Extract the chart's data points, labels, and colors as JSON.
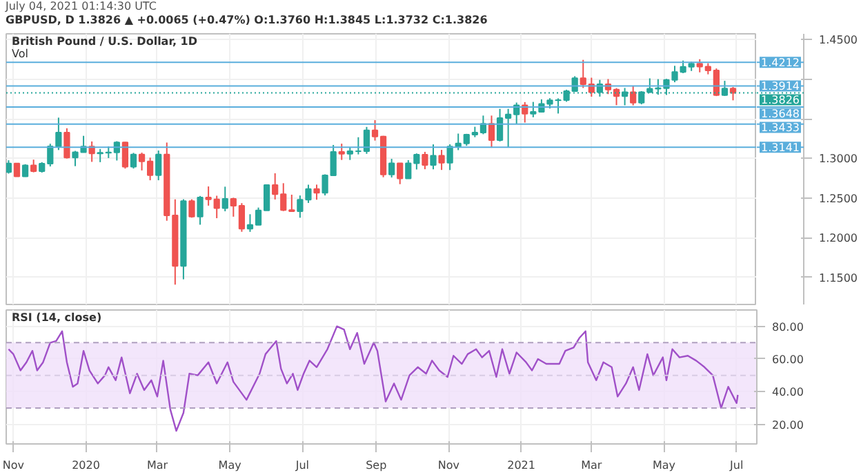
{
  "chart_data": [
    {
      "type": "candlestick",
      "subtitle": "July 04, 2021 01:14:30 UTC",
      "title": "GBPUSD, D  1.3826 ▲ +0.0065 (+0.47%)  O:1.3760  H:1.3845  L:1.3732  C:1.3826",
      "annotations": [
        "British Pound / U.S. Dollar, 1D",
        "Vol"
      ],
      "x": [
        "2019-10-28",
        "2019-11-04",
        "2019-11-11",
        "2019-11-18",
        "2019-11-25",
        "2019-12-02",
        "2019-12-09",
        "2019-12-16",
        "2019-12-23",
        "2019-12-30",
        "2020-01-06",
        "2020-01-13",
        "2020-01-20",
        "2020-01-27",
        "2020-02-03",
        "2020-02-10",
        "2020-02-17",
        "2020-02-24",
        "2020-03-02",
        "2020-03-09",
        "2020-03-16",
        "2020-03-23",
        "2020-03-30",
        "2020-04-06",
        "2020-04-13",
        "2020-04-20",
        "2020-04-27",
        "2020-05-04",
        "2020-05-11",
        "2020-05-18",
        "2020-05-25",
        "2020-06-01",
        "2020-06-08",
        "2020-06-15",
        "2020-06-22",
        "2020-06-29",
        "2020-07-06",
        "2020-07-13",
        "2020-07-20",
        "2020-07-27",
        "2020-08-03",
        "2020-08-10",
        "2020-08-17",
        "2020-08-24",
        "2020-08-31",
        "2020-09-07",
        "2020-09-14",
        "2020-09-21",
        "2020-09-28",
        "2020-10-05",
        "2020-10-12",
        "2020-10-19",
        "2020-10-26",
        "2020-11-02",
        "2020-11-09",
        "2020-11-16",
        "2020-11-23",
        "2020-11-30",
        "2020-12-07",
        "2020-12-14",
        "2020-12-21",
        "2020-12-28",
        "2021-01-04",
        "2021-01-11",
        "2021-01-18",
        "2021-01-25",
        "2021-02-01",
        "2021-02-08",
        "2021-02-15",
        "2021-02-22",
        "2021-03-01",
        "2021-03-08",
        "2021-03-15",
        "2021-03-22",
        "2021-03-29",
        "2021-04-05",
        "2021-04-12",
        "2021-04-19",
        "2021-04-26",
        "2021-05-03",
        "2021-05-10",
        "2021-05-17",
        "2021-05-24",
        "2021-05-31",
        "2021-06-07",
        "2021-06-14",
        "2021-06-21",
        "2021-06-28"
      ],
      "ohlc": [
        [
          1.2828,
          1.2977,
          1.2809,
          1.2937
        ],
        [
          1.2937,
          1.2939,
          1.2769,
          1.2773
        ],
        [
          1.2773,
          1.2927,
          1.2768,
          1.2913
        ],
        [
          1.2913,
          1.2985,
          1.2825,
          1.2838
        ],
        [
          1.2838,
          1.2953,
          1.2822,
          1.2934
        ],
        [
          1.2934,
          1.3185,
          1.2899,
          1.3153
        ],
        [
          1.3153,
          1.3514,
          1.3106,
          1.3325
        ],
        [
          1.3325,
          1.338,
          1.2999,
          1.301
        ],
        [
          1.301,
          1.3095,
          1.2903,
          1.3079
        ],
        [
          1.3079,
          1.3285,
          1.3079,
          1.315
        ],
        [
          1.315,
          1.3214,
          1.2957,
          1.3062
        ],
        [
          1.3062,
          1.3119,
          1.2953,
          1.3071
        ],
        [
          1.3071,
          1.3152,
          1.3005,
          1.3077
        ],
        [
          1.3077,
          1.3217,
          1.2974,
          1.3203
        ],
        [
          1.3203,
          1.3208,
          1.2872,
          1.2896
        ],
        [
          1.2896,
          1.307,
          1.2873,
          1.3049
        ],
        [
          1.3049,
          1.3073,
          1.2849,
          1.2962
        ],
        [
          1.2962,
          1.301,
          1.2725,
          1.2789
        ],
        [
          1.2789,
          1.31,
          1.2725,
          1.3049
        ],
        [
          1.3049,
          1.32,
          1.2215,
          1.2282
        ],
        [
          1.2282,
          1.2485,
          1.141,
          1.1644
        ],
        [
          1.1644,
          1.2486,
          1.1477,
          1.2463
        ],
        [
          1.2463,
          1.2485,
          1.2254,
          1.2266
        ],
        [
          1.2266,
          1.2527,
          1.2165,
          1.2509
        ],
        [
          1.2509,
          1.2647,
          1.2405,
          1.2484
        ],
        [
          1.2484,
          1.253,
          1.2247,
          1.2373
        ],
        [
          1.2373,
          1.2644,
          1.2334,
          1.249
        ],
        [
          1.249,
          1.2505,
          1.2266,
          1.2405
        ],
        [
          1.2405,
          1.2437,
          1.2076,
          1.2115
        ],
        [
          1.2115,
          1.2297,
          1.2075,
          1.2162
        ],
        [
          1.2162,
          1.2381,
          1.216,
          1.2346
        ],
        [
          1.2346,
          1.267,
          1.2346,
          1.2665
        ],
        [
          1.2665,
          1.2813,
          1.2483,
          1.255
        ],
        [
          1.255,
          1.2688,
          1.2337,
          1.235
        ],
        [
          1.235,
          1.2543,
          1.233,
          1.2334
        ],
        [
          1.2334,
          1.2533,
          1.2253,
          1.248
        ],
        [
          1.248,
          1.2669,
          1.2439,
          1.2615
        ],
        [
          1.2615,
          1.267,
          1.248,
          1.2567
        ],
        [
          1.2567,
          1.28,
          1.2534,
          1.2787
        ],
        [
          1.2787,
          1.317,
          1.278,
          1.3083
        ],
        [
          1.3083,
          1.3186,
          1.2981,
          1.3058
        ],
        [
          1.3058,
          1.3143,
          1.2981,
          1.3091
        ],
        [
          1.3091,
          1.3267,
          1.3051,
          1.3092
        ],
        [
          1.3092,
          1.3397,
          1.3058,
          1.3355
        ],
        [
          1.3355,
          1.3482,
          1.3225,
          1.3277
        ],
        [
          1.3277,
          1.3285,
          1.2763,
          1.2797
        ],
        [
          1.2797,
          1.2995,
          1.276,
          1.2938
        ],
        [
          1.2938,
          1.2942,
          1.2676,
          1.2747
        ],
        [
          1.2747,
          1.2979,
          1.2745,
          1.294
        ],
        [
          1.294,
          1.3063,
          1.2861,
          1.3047
        ],
        [
          1.3047,
          1.3083,
          1.2864,
          1.2918
        ],
        [
          1.2918,
          1.3177,
          1.2863,
          1.3035
        ],
        [
          1.3035,
          1.3108,
          1.2855,
          1.2945
        ],
        [
          1.2945,
          1.3178,
          1.2854,
          1.315
        ],
        [
          1.315,
          1.3313,
          1.3105,
          1.319
        ],
        [
          1.319,
          1.331,
          1.3159,
          1.33
        ],
        [
          1.33,
          1.3399,
          1.3268,
          1.3326
        ],
        [
          1.3326,
          1.354,
          1.3305,
          1.3437
        ],
        [
          1.3437,
          1.354,
          1.3134,
          1.3231
        ],
        [
          1.3231,
          1.3625,
          1.3214,
          1.3509
        ],
        [
          1.3509,
          1.3625,
          1.3135,
          1.3554
        ],
        [
          1.3554,
          1.3704,
          1.343,
          1.367
        ],
        [
          1.367,
          1.371,
          1.3452,
          1.3563
        ],
        [
          1.3563,
          1.3712,
          1.3519,
          1.3587
        ],
        [
          1.3587,
          1.3745,
          1.3578,
          1.3686
        ],
        [
          1.3686,
          1.3759,
          1.363,
          1.3732
        ],
        [
          1.3732,
          1.3757,
          1.3566,
          1.3734
        ],
        [
          1.3734,
          1.3866,
          1.3714,
          1.3848
        ],
        [
          1.3848,
          1.4036,
          1.3846,
          1.4011
        ],
        [
          1.4011,
          1.4242,
          1.3888,
          1.3935
        ],
        [
          1.3935,
          1.4017,
          1.3778,
          1.3834
        ],
        [
          1.3834,
          1.399,
          1.3779,
          1.3935
        ],
        [
          1.3935,
          1.4,
          1.3811,
          1.3868
        ],
        [
          1.3868,
          1.3886,
          1.3671,
          1.3784
        ],
        [
          1.3784,
          1.3888,
          1.3669,
          1.3835
        ],
        [
          1.3835,
          1.3918,
          1.3669,
          1.3702
        ],
        [
          1.3702,
          1.3848,
          1.3682,
          1.3836
        ],
        [
          1.3836,
          1.4009,
          1.3827,
          1.3879
        ],
        [
          1.3879,
          1.3999,
          1.3803,
          1.3884
        ],
        [
          1.3884,
          1.4003,
          1.38,
          1.399
        ],
        [
          1.399,
          1.4167,
          1.396,
          1.409
        ],
        [
          1.409,
          1.4233,
          1.4074,
          1.4155
        ],
        [
          1.4155,
          1.4219,
          1.4102,
          1.4193
        ],
        [
          1.4193,
          1.425,
          1.4085,
          1.4157
        ],
        [
          1.4157,
          1.42,
          1.406,
          1.411
        ],
        [
          1.411,
          1.4134,
          1.3786,
          1.3799
        ],
        [
          1.3799,
          1.3978,
          1.3787,
          1.388
        ],
        [
          1.388,
          1.39,
          1.3732,
          1.3826
        ]
      ],
      "xlim": [
        "2019-10-26",
        "2021-07-18"
      ],
      "xticks": [
        {
          "value": "2019-11-01",
          "label": null
        },
        {
          "value": "2020-01-01",
          "label": null
        },
        {
          "value": "2020-03-01",
          "label": null
        },
        {
          "value": "2020-05-01",
          "label": null
        },
        {
          "value": "2020-07-01",
          "label": null
        },
        {
          "value": "2020-09-01",
          "label": null
        },
        {
          "value": "2020-11-01",
          "label": null
        },
        {
          "value": "2021-01-01",
          "label": null
        },
        {
          "value": "2021-03-01",
          "label": null
        },
        {
          "value": "2021-05-01",
          "label": null
        },
        {
          "value": "2021-07-01",
          "label": null
        }
      ],
      "ylim": [
        1.116,
        1.457
      ],
      "yticks": [
        {
          "value": 1.15,
          "label": "1.1500"
        },
        {
          "value": 1.2,
          "label": "1.2000"
        },
        {
          "value": 1.25,
          "label": "1.2500"
        },
        {
          "value": 1.3,
          "label": "1.3000"
        },
        {
          "value": 1.35,
          "label": null
        },
        {
          "value": 1.4,
          "label": null
        },
        {
          "value": 1.45,
          "label": "1.4500"
        }
      ],
      "tick_labels": "y",
      "grid": true,
      "ref_lines": [
        {
          "axis": "y",
          "value": 1.4212,
          "label": "1.4212",
          "color": "#5aaedc",
          "line_style": "solid"
        },
        {
          "axis": "y",
          "value": 1.3914,
          "label": "1.3914",
          "color": "#5aaedc",
          "line_style": "solid"
        },
        {
          "axis": "y",
          "value": 1.3826,
          "label": "1.3826",
          "color": "#26a69a",
          "line_style": "dotted"
        },
        {
          "axis": "y",
          "value": 1.3648,
          "label": "1.3648",
          "color": "#5aaedc",
          "line_style": "solid"
        },
        {
          "axis": "y",
          "value": 1.3433,
          "label": "1.3433",
          "color": "#5aaedc",
          "line_style": "solid"
        },
        {
          "axis": "y",
          "value": 1.3141,
          "label": "1.3141",
          "color": "#5aaedc",
          "line_style": "solid"
        }
      ]
    },
    {
      "type": "line",
      "annotations": [
        "RSI (14, close)"
      ],
      "marker": "none",
      "line_style": "solid",
      "x": [
        "2019-10-28",
        "2019-11-01",
        "2019-11-07",
        "2019-11-12",
        "2019-11-17",
        "2019-11-21",
        "2019-11-26",
        "2019-12-02",
        "2019-12-07",
        "2019-12-12",
        "2019-12-16",
        "2019-12-21",
        "2019-12-25",
        "2019-12-30",
        "2020-01-04",
        "2020-01-11",
        "2020-01-17",
        "2020-01-20",
        "2020-01-26",
        "2020-01-31",
        "2020-02-07",
        "2020-02-13",
        "2020-02-19",
        "2020-02-25",
        "2020-03-01",
        "2020-03-06",
        "2020-03-12",
        "2020-03-17",
        "2020-03-23",
        "2020-03-28",
        "2020-04-04",
        "2020-04-13",
        "2020-04-20",
        "2020-04-29",
        "2020-05-04",
        "2020-05-15",
        "2020-05-26",
        "2020-05-31",
        "2020-06-09",
        "2020-06-13",
        "2020-06-18",
        "2020-06-23",
        "2020-06-27",
        "2020-07-02",
        "2020-07-07",
        "2020-07-13",
        "2020-07-22",
        "2020-07-30",
        "2020-08-05",
        "2020-08-10",
        "2020-08-16",
        "2020-08-22",
        "2020-08-30",
        "2020-09-02",
        "2020-09-09",
        "2020-09-16",
        "2020-09-22",
        "2020-09-29",
        "2020-10-06",
        "2020-10-13",
        "2020-10-18",
        "2020-10-24",
        "2020-10-31",
        "2020-11-05",
        "2020-11-12",
        "2020-11-17",
        "2020-11-24",
        "2020-11-29",
        "2020-12-05",
        "2020-12-11",
        "2020-12-16",
        "2020-12-22",
        "2020-12-28",
        "2021-01-05",
        "2021-01-10",
        "2021-01-15",
        "2021-01-22",
        "2021-02-02",
        "2021-02-07",
        "2021-02-14",
        "2021-02-19",
        "2021-02-24",
        "2021-02-26",
        "2021-03-05",
        "2021-03-11",
        "2021-03-18",
        "2021-03-23",
        "2021-03-30",
        "2021-04-05",
        "2021-04-10",
        "2021-04-17",
        "2021-04-22",
        "2021-04-30",
        "2021-05-03",
        "2021-05-08",
        "2021-05-14",
        "2021-05-21",
        "2021-05-28",
        "2021-06-04",
        "2021-06-11",
        "2021-06-18",
        "2021-06-24",
        "2021-07-01",
        "2021-07-02"
      ],
      "series": [
        {
          "color": "#a050c8",
          "values": [
            66,
            63,
            53,
            58,
            65,
            53,
            58,
            70,
            71,
            77,
            58,
            43,
            45,
            65,
            53,
            45,
            50,
            55,
            47,
            61,
            39,
            51,
            41,
            47,
            37,
            59,
            29,
            16,
            27,
            51,
            50,
            58,
            45,
            58,
            46,
            35,
            51,
            63,
            71,
            54,
            45,
            51,
            41,
            51,
            59,
            55,
            66,
            80,
            78,
            66,
            76,
            57,
            70,
            65,
            34,
            45,
            35,
            50,
            55,
            51,
            59,
            53,
            49,
            62,
            57,
            63,
            66,
            61,
            65,
            49,
            66,
            51,
            64,
            58,
            53,
            60,
            57,
            57,
            65,
            67,
            73,
            77,
            58,
            47,
            58,
            55,
            37,
            45,
            55,
            41,
            63,
            50,
            61,
            47,
            66,
            61,
            62,
            59,
            55,
            50,
            30,
            43,
            33,
            38
          ]
        }
      ],
      "xlim": [
        "2019-10-26",
        "2021-07-18"
      ],
      "xticks": [
        {
          "value": "2019-11-01",
          "label": "Nov"
        },
        {
          "value": "2020-01-01",
          "label": "2020"
        },
        {
          "value": "2020-03-01",
          "label": "Mar"
        },
        {
          "value": "2020-05-01",
          "label": "May"
        },
        {
          "value": "2020-07-01",
          "label": "Jul"
        },
        {
          "value": "2020-09-01",
          "label": "Sep"
        },
        {
          "value": "2020-11-01",
          "label": "Nov"
        },
        {
          "value": "2021-01-01",
          "label": "2021"
        },
        {
          "value": "2021-03-01",
          "label": "Mar"
        },
        {
          "value": "2021-05-01",
          "label": "May"
        },
        {
          "value": "2021-07-01",
          "label": "Jul"
        }
      ],
      "ylim": [
        8,
        90
      ],
      "yticks": [
        {
          "value": 20,
          "label": "20.00"
        },
        {
          "value": 40,
          "label": "40.00"
        },
        {
          "value": 60,
          "label": "60.00"
        },
        {
          "value": 80,
          "label": "80.00"
        }
      ],
      "grid": true,
      "bands": [
        {
          "axis": "y",
          "from": 30,
          "to": 70,
          "color": "#f0e0fa"
        }
      ],
      "ref_lines": [
        {
          "axis": "y",
          "value": 70,
          "color": "#b0a0c0",
          "line_style": "dashed"
        },
        {
          "axis": "y",
          "value": 50,
          "color": "#d8cce4",
          "line_style": "dashed"
        },
        {
          "axis": "y",
          "value": 30,
          "color": "#b0a0c0",
          "line_style": "dashed"
        }
      ]
    }
  ]
}
